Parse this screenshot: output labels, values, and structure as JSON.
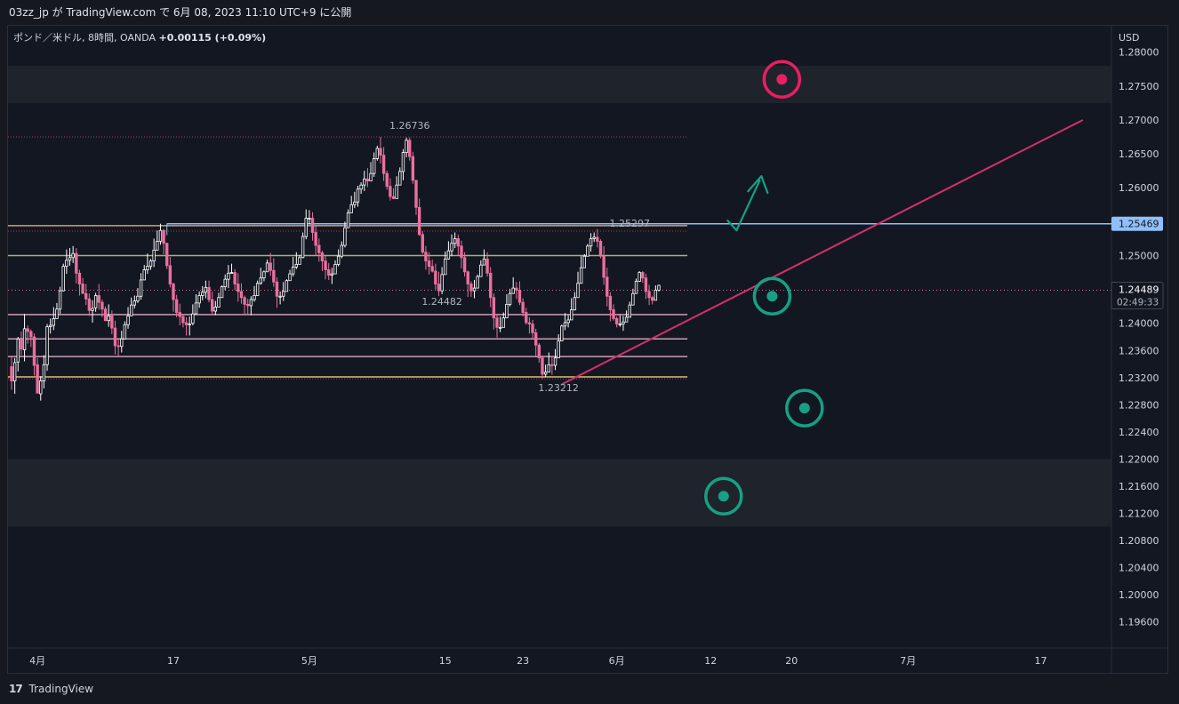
{
  "header": {
    "publish_line": "03zz_jp が TradingView.com で 6月 08, 2023 11:10 UTC+9 に公開"
  },
  "footer": {
    "brand": "TradingView"
  },
  "chart_data": {
    "type": "candlestick",
    "symbol": "ポンド／米ドル, 8時間, OANDA",
    "change": "+0.00115 (+0.09%)",
    "currency": "USD",
    "ylim": [
      1.1925,
      1.2835
    ],
    "xlim_index": [
      0,
      209
    ],
    "y_ticks": [
      "1.28000",
      "1.27500",
      "1.27000",
      "1.26500",
      "1.26000",
      "1.25500",
      "1.25000",
      "1.24400",
      "1.24000",
      "1.23600",
      "1.23200",
      "1.22800",
      "1.22400",
      "1.22000",
      "1.21600",
      "1.21200",
      "1.20800",
      "1.20400",
      "1.20000",
      "1.19600"
    ],
    "x_ticks": [
      {
        "label": "4月",
        "i": 8
      },
      {
        "label": "17",
        "i": 50
      },
      {
        "label": "5月",
        "i": 92
      },
      {
        "label": "15",
        "i": 134
      },
      {
        "label": "23",
        "i": 158
      },
      {
        "label": "6月",
        "i": 187
      },
      {
        "label": "12",
        "i": 216
      },
      {
        "label": "20",
        "i": 241
      },
      {
        "label": "7月",
        "i": 277
      },
      {
        "label": "17",
        "i": 318
      }
    ],
    "price_labels": [
      {
        "text": "1.26736",
        "i": 123,
        "price": 1.26736,
        "pos": "above"
      },
      {
        "text": "1.25297",
        "i": 191,
        "price": 1.25297,
        "pos": "above"
      },
      {
        "text": "1.24482",
        "i": 133,
        "price": 1.24482,
        "pos": "below"
      },
      {
        "text": "1.23212",
        "i": 169,
        "price": 1.23212,
        "pos": "below"
      }
    ],
    "current_price": {
      "value": "1.24489",
      "countdown": "02:49:33",
      "price": 1.24489
    },
    "marked_level": {
      "value": "1.25469",
      "price": 1.25469
    },
    "zones": [
      {
        "from": 1.2725,
        "to": 1.278,
        "color": "#1f232c"
      },
      {
        "from": 1.22,
        "to": 1.21,
        "color": "#1f232c"
      }
    ],
    "hlines": [
      {
        "price": 1.2675,
        "color": "#a63a5f",
        "style": "dotted",
        "x_end": 208
      },
      {
        "price": 1.2544,
        "color": "#d2a06e",
        "style": "solid",
        "x_end": 208
      },
      {
        "price": 1.2536,
        "color": "#a63a5f",
        "style": "dotted",
        "x_end": 208
      },
      {
        "price": 1.25,
        "color": "#a3b574",
        "style": "solid",
        "x_end": 208
      },
      {
        "price": 1.2413,
        "color": "#c9a0b4",
        "style": "solid",
        "x_end": 208
      },
      {
        "price": 1.2377,
        "color": "#c9a0b4",
        "style": "solid",
        "x_end": 208
      },
      {
        "price": 1.2351,
        "color": "#c9a0b4",
        "style": "solid",
        "x_end": 208
      },
      {
        "price": 1.2321,
        "color": "#d9c06e",
        "style": "solid",
        "x_end": 208
      },
      {
        "price": 1.2318,
        "color": "#a63a5f",
        "style": "dotted",
        "x_end": 208
      }
    ],
    "trendline": {
      "from": {
        "i": 170,
        "price": 1.231
      },
      "to": {
        "i": 331,
        "price": 1.27
      },
      "color": "#d5306a"
    },
    "markers": [
      {
        "i": 238,
        "price": 1.276,
        "color": "#e91e63"
      },
      {
        "i": 235,
        "price": 1.244,
        "color": "#17a084"
      },
      {
        "i": 245,
        "price": 1.2275,
        "color": "#17a084"
      },
      {
        "i": 220,
        "price": 1.2145,
        "color": "#17a084"
      }
    ],
    "candles": [
      [
        1.2336,
        1.2315,
        1.235,
        1.2302
      ],
      [
        1.2315,
        1.2342,
        1.2349,
        1.2296
      ],
      [
        1.2343,
        1.2377,
        1.238,
        1.2329
      ],
      [
        1.2378,
        1.2362,
        1.2388,
        1.2353
      ],
      [
        1.2361,
        1.2392,
        1.2414,
        1.2344
      ],
      [
        1.2392,
        1.2388,
        1.2397,
        1.237
      ],
      [
        1.2388,
        1.238,
        1.2391,
        1.2365
      ],
      [
        1.238,
        1.2338,
        1.2385,
        1.2323
      ],
      [
        1.2339,
        1.2297,
        1.2349,
        1.2297
      ],
      [
        1.2296,
        1.2315,
        1.2322,
        1.2286
      ],
      [
        1.2315,
        1.2339,
        1.2353,
        1.2304
      ],
      [
        1.2339,
        1.2395,
        1.2399,
        1.233
      ],
      [
        1.2395,
        1.2397,
        1.2407,
        1.2385
      ],
      [
        1.2397,
        1.2407,
        1.2424,
        1.239
      ],
      [
        1.2407,
        1.2421,
        1.243,
        1.2407
      ],
      [
        1.2421,
        1.2448,
        1.2454,
        1.2414
      ],
      [
        1.2448,
        1.2484,
        1.2488,
        1.2447
      ],
      [
        1.2484,
        1.2493,
        1.2509,
        1.2473
      ],
      [
        1.2493,
        1.2497,
        1.2511,
        1.2485
      ],
      [
        1.2497,
        1.2503,
        1.2514,
        1.2489
      ],
      [
        1.2503,
        1.2474,
        1.2511,
        1.2459
      ],
      [
        1.2474,
        1.2458,
        1.2479,
        1.2441
      ],
      [
        1.2458,
        1.2444,
        1.2467,
        1.2443
      ],
      [
        1.2444,
        1.2436,
        1.2458,
        1.2427
      ],
      [
        1.2436,
        1.2419,
        1.2444,
        1.2411
      ],
      [
        1.2419,
        1.2422,
        1.2434,
        1.2401
      ],
      [
        1.2423,
        1.2441,
        1.2445,
        1.2417
      ],
      [
        1.2441,
        1.2431,
        1.2458,
        1.242
      ],
      [
        1.2431,
        1.2421,
        1.2435,
        1.2409
      ],
      [
        1.2421,
        1.2404,
        1.2425,
        1.2403
      ],
      [
        1.2404,
        1.2411,
        1.2428,
        1.2395
      ],
      [
        1.2411,
        1.2393,
        1.2419,
        1.2384
      ],
      [
        1.2393,
        1.2367,
        1.2404,
        1.2354
      ],
      [
        1.2367,
        1.2366,
        1.2376,
        1.2352
      ],
      [
        1.2366,
        1.2377,
        1.2389,
        1.2357
      ],
      [
        1.2377,
        1.2398,
        1.2403,
        1.2377
      ],
      [
        1.2398,
        1.2411,
        1.2424,
        1.2392
      ],
      [
        1.2411,
        1.2427,
        1.2438,
        1.2417
      ],
      [
        1.2427,
        1.2433,
        1.2441,
        1.2422
      ],
      [
        1.2433,
        1.244,
        1.2452,
        1.243
      ],
      [
        1.244,
        1.2464,
        1.2474,
        1.2435
      ],
      [
        1.2464,
        1.2479,
        1.2486,
        1.247
      ],
      [
        1.2479,
        1.2484,
        1.2503,
        1.2473
      ],
      [
        1.2484,
        1.2492,
        1.2495,
        1.2479
      ],
      [
        1.2492,
        1.2508,
        1.2525,
        1.2483
      ],
      [
        1.2508,
        1.2521,
        1.2537,
        1.2511
      ],
      [
        1.2521,
        1.2537,
        1.2547,
        1.2516
      ],
      [
        1.2537,
        1.2518,
        1.2539,
        1.2502
      ],
      [
        1.2518,
        1.2485,
        1.2519,
        1.248
      ],
      [
        1.2485,
        1.2458,
        1.2498,
        1.2453
      ],
      [
        1.2458,
        1.2435,
        1.246,
        1.2417
      ],
      [
        1.2435,
        1.2416,
        1.2442,
        1.2409
      ],
      [
        1.2416,
        1.241,
        1.2429,
        1.2397
      ],
      [
        1.241,
        1.2401,
        1.2413,
        1.2394
      ],
      [
        1.2401,
        1.2398,
        1.2409,
        1.2382
      ],
      [
        1.2398,
        1.2399,
        1.241,
        1.2382
      ],
      [
        1.24,
        1.2414,
        1.2428,
        1.2397
      ],
      [
        1.2414,
        1.243,
        1.2443,
        1.2417
      ],
      [
        1.243,
        1.2441,
        1.2447,
        1.2423
      ],
      [
        1.2441,
        1.2446,
        1.2455,
        1.2434
      ],
      [
        1.2446,
        1.2453,
        1.2463,
        1.2437
      ],
      [
        1.2453,
        1.2435,
        1.2463,
        1.2431
      ],
      [
        1.2435,
        1.2418,
        1.2447,
        1.2413
      ],
      [
        1.2418,
        1.2424,
        1.2433,
        1.2412
      ],
      [
        1.2424,
        1.2438,
        1.2445,
        1.2425
      ],
      [
        1.2438,
        1.2454,
        1.2456,
        1.2452
      ],
      [
        1.2454,
        1.2465,
        1.2472,
        1.2449
      ],
      [
        1.2465,
        1.2474,
        1.2486,
        1.2452
      ],
      [
        1.2474,
        1.2475,
        1.2488,
        1.2473
      ],
      [
        1.2475,
        1.2458,
        1.248,
        1.2449
      ],
      [
        1.2458,
        1.2447,
        1.2474,
        1.2432
      ],
      [
        1.2447,
        1.2438,
        1.2459,
        1.2429
      ],
      [
        1.2438,
        1.2428,
        1.2441,
        1.2414
      ],
      [
        1.2428,
        1.2426,
        1.2436,
        1.2413
      ],
      [
        1.2426,
        1.2435,
        1.244,
        1.2412
      ],
      [
        1.2435,
        1.2441,
        1.2455,
        1.2432
      ],
      [
        1.2441,
        1.2459,
        1.2463,
        1.2452
      ],
      [
        1.2459,
        1.2467,
        1.2482,
        1.2457
      ],
      [
        1.2467,
        1.2476,
        1.2478,
        1.2462
      ],
      [
        1.2476,
        1.2489,
        1.2494,
        1.2479
      ],
      [
        1.2489,
        1.2478,
        1.2504,
        1.247
      ],
      [
        1.2478,
        1.2461,
        1.2496,
        1.2454
      ],
      [
        1.2461,
        1.244,
        1.2468,
        1.2423
      ],
      [
        1.244,
        1.244,
        1.2447,
        1.2428
      ],
      [
        1.244,
        1.2447,
        1.2461,
        1.2433
      ],
      [
        1.2447,
        1.2463,
        1.2465,
        1.2453
      ],
      [
        1.2463,
        1.2473,
        1.2479,
        1.2465
      ],
      [
        1.2473,
        1.2483,
        1.2498,
        1.2469
      ],
      [
        1.2483,
        1.2487,
        1.2505,
        1.248
      ],
      [
        1.2487,
        1.2497,
        1.2501,
        1.2488
      ],
      [
        1.2497,
        1.2528,
        1.2534,
        1.2496
      ],
      [
        1.2528,
        1.2555,
        1.2568,
        1.2524
      ],
      [
        1.2555,
        1.2555,
        1.2567,
        1.2546
      ],
      [
        1.2555,
        1.2534,
        1.2564,
        1.2522
      ],
      [
        1.2534,
        1.2515,
        1.2544,
        1.2501
      ],
      [
        1.2515,
        1.2504,
        1.2525,
        1.2491
      ],
      [
        1.2504,
        1.2492,
        1.2507,
        1.2477
      ],
      [
        1.2492,
        1.2479,
        1.25,
        1.2465
      ],
      [
        1.2479,
        1.2471,
        1.2489,
        1.2464
      ],
      [
        1.2471,
        1.2473,
        1.2482,
        1.2458
      ],
      [
        1.2473,
        1.2487,
        1.2493,
        1.2473
      ],
      [
        1.2487,
        1.2499,
        1.2509,
        1.2484
      ],
      [
        1.2499,
        1.2515,
        1.2521,
        1.2496
      ],
      [
        1.2515,
        1.2541,
        1.255,
        1.2512
      ],
      [
        1.2541,
        1.2563,
        1.2568,
        1.2545
      ],
      [
        1.2563,
        1.2575,
        1.2588,
        1.2563
      ],
      [
        1.2575,
        1.2579,
        1.2594,
        1.257
      ],
      [
        1.2579,
        1.2598,
        1.2603,
        1.2572
      ],
      [
        1.2598,
        1.2604,
        1.2608,
        1.2591
      ],
      [
        1.2604,
        1.2613,
        1.2625,
        1.2595
      ],
      [
        1.2613,
        1.261,
        1.2629,
        1.2601
      ],
      [
        1.261,
        1.2621,
        1.2638,
        1.2611
      ],
      [
        1.2621,
        1.2643,
        1.2652,
        1.2616
      ],
      [
        1.2643,
        1.2658,
        1.2662,
        1.264
      ],
      [
        1.2658,
        1.2648,
        1.2675,
        1.2636
      ],
      [
        1.2648,
        1.2621,
        1.266,
        1.261
      ],
      [
        1.2621,
        1.2602,
        1.2625,
        1.2597
      ],
      [
        1.2602,
        1.2587,
        1.2614,
        1.2581
      ],
      [
        1.2587,
        1.2584,
        1.2599,
        1.2583
      ],
      [
        1.2584,
        1.2604,
        1.2617,
        1.2592
      ],
      [
        1.2604,
        1.2624,
        1.263,
        1.2607
      ],
      [
        1.2624,
        1.2652,
        1.2657,
        1.2611
      ],
      [
        1.2652,
        1.267,
        1.2674,
        1.2645
      ],
      [
        1.267,
        1.2646,
        1.2674,
        1.264
      ],
      [
        1.2646,
        1.2611,
        1.2653,
        1.2606
      ],
      [
        1.2611,
        1.2571,
        1.2611,
        1.256
      ],
      [
        1.2571,
        1.2531,
        1.2584,
        1.2529
      ],
      [
        1.2531,
        1.2505,
        1.2536,
        1.2502
      ],
      [
        1.2505,
        1.2492,
        1.2514,
        1.2479
      ],
      [
        1.2492,
        1.2484,
        1.2505,
        1.2472
      ],
      [
        1.2484,
        1.2477,
        1.2494,
        1.2475
      ],
      [
        1.2477,
        1.2458,
        1.2488,
        1.245
      ],
      [
        1.2458,
        1.2448,
        1.2476,
        1.244
      ],
      [
        1.2448,
        1.2472,
        1.2483,
        1.2443
      ],
      [
        1.2472,
        1.2495,
        1.2506,
        1.2477
      ],
      [
        1.2495,
        1.2507,
        1.2521,
        1.2494
      ],
      [
        1.2507,
        1.2518,
        1.2531,
        1.2499
      ],
      [
        1.2518,
        1.2525,
        1.2534,
        1.2511
      ],
      [
        1.2525,
        1.2514,
        1.2531,
        1.25
      ],
      [
        1.2514,
        1.2497,
        1.2522,
        1.2481
      ],
      [
        1.2497,
        1.2476,
        1.2505,
        1.2469
      ],
      [
        1.2476,
        1.2458,
        1.2478,
        1.2439
      ],
      [
        1.2458,
        1.2448,
        1.2462,
        1.2439
      ],
      [
        1.2448,
        1.2452,
        1.2464,
        1.2437
      ],
      [
        1.2452,
        1.2469,
        1.2472,
        1.246
      ],
      [
        1.2469,
        1.2486,
        1.2493,
        1.2483
      ],
      [
        1.2486,
        1.2495,
        1.2509,
        1.249
      ],
      [
        1.2495,
        1.2474,
        1.2505,
        1.2469
      ],
      [
        1.2474,
        1.2438,
        1.2483,
        1.2424
      ],
      [
        1.2438,
        1.2408,
        1.2444,
        1.2391
      ],
      [
        1.2408,
        1.2394,
        1.2414,
        1.2379
      ],
      [
        1.2394,
        1.2394,
        1.241,
        1.2387
      ],
      [
        1.2394,
        1.2408,
        1.2416,
        1.2402
      ],
      [
        1.2408,
        1.2428,
        1.2443,
        1.242
      ],
      [
        1.2428,
        1.2444,
        1.2451,
        1.2425
      ],
      [
        1.2444,
        1.2452,
        1.2468,
        1.2444
      ],
      [
        1.2452,
        1.2449,
        1.2461,
        1.2436
      ],
      [
        1.2449,
        1.2431,
        1.2462,
        1.2427
      ],
      [
        1.2431,
        1.2416,
        1.2437,
        1.241
      ],
      [
        1.2416,
        1.2401,
        1.2423,
        1.2398
      ],
      [
        1.2401,
        1.2399,
        1.2409,
        1.2385
      ],
      [
        1.2399,
        1.2386,
        1.2405,
        1.2377
      ],
      [
        1.2386,
        1.2368,
        1.2392,
        1.2352
      ],
      [
        1.2368,
        1.2349,
        1.2371,
        1.2342
      ],
      [
        1.2349,
        1.2325,
        1.2353,
        1.2318
      ],
      [
        1.2325,
        1.2328,
        1.2339,
        1.2321
      ],
      [
        1.2328,
        1.2339,
        1.2357,
        1.233
      ],
      [
        1.2339,
        1.2338,
        1.2351,
        1.2324
      ],
      [
        1.2338,
        1.2349,
        1.2362,
        1.2331
      ],
      [
        1.2349,
        1.2374,
        1.2384,
        1.2364
      ],
      [
        1.2374,
        1.2396,
        1.2398,
        1.2378
      ],
      [
        1.2396,
        1.2401,
        1.2415,
        1.239
      ],
      [
        1.2401,
        1.2405,
        1.2412,
        1.2394
      ],
      [
        1.2405,
        1.242,
        1.2437,
        1.2416
      ],
      [
        1.242,
        1.2438,
        1.2446,
        1.2419
      ],
      [
        1.2438,
        1.2459,
        1.2476,
        1.2449
      ],
      [
        1.2459,
        1.2482,
        1.2499,
        1.247
      ],
      [
        1.2482,
        1.2499,
        1.2502,
        1.2488
      ],
      [
        1.2499,
        1.2514,
        1.2517,
        1.2502
      ],
      [
        1.2514,
        1.2525,
        1.2533,
        1.2506
      ],
      [
        1.2525,
        1.2527,
        1.2534,
        1.252
      ],
      [
        1.2527,
        1.2521,
        1.2539,
        1.2512
      ],
      [
        1.2521,
        1.2499,
        1.2524,
        1.2496
      ],
      [
        1.2499,
        1.2468,
        1.2514,
        1.2457
      ],
      [
        1.2468,
        1.244,
        1.2482,
        1.2425
      ],
      [
        1.244,
        1.242,
        1.2446,
        1.2403
      ],
      [
        1.242,
        1.2407,
        1.2428,
        1.2404
      ],
      [
        1.2407,
        1.2399,
        1.241,
        1.2394
      ],
      [
        1.2399,
        1.2399,
        1.2412,
        1.2395
      ],
      [
        1.2399,
        1.2402,
        1.2411,
        1.2389
      ],
      [
        1.2402,
        1.2409,
        1.2419,
        1.2405
      ],
      [
        1.2409,
        1.2427,
        1.2432,
        1.2421
      ],
      [
        1.2427,
        1.2444,
        1.2451,
        1.2438
      ],
      [
        1.2444,
        1.2462,
        1.2466,
        1.2455
      ],
      [
        1.2462,
        1.2475,
        1.2477,
        1.2461
      ],
      [
        1.2475,
        1.2467,
        1.2477,
        1.246
      ],
      [
        1.2467,
        1.2447,
        1.2473,
        1.2436
      ],
      [
        1.2447,
        1.2438,
        1.2457,
        1.2427
      ],
      [
        1.2438,
        1.2434,
        1.2441,
        1.2428
      ],
      [
        1.2434,
        1.2449,
        1.2456,
        1.2447
      ],
      [
        1.2449,
        1.2456,
        1.2457,
        1.2447
      ]
    ]
  }
}
